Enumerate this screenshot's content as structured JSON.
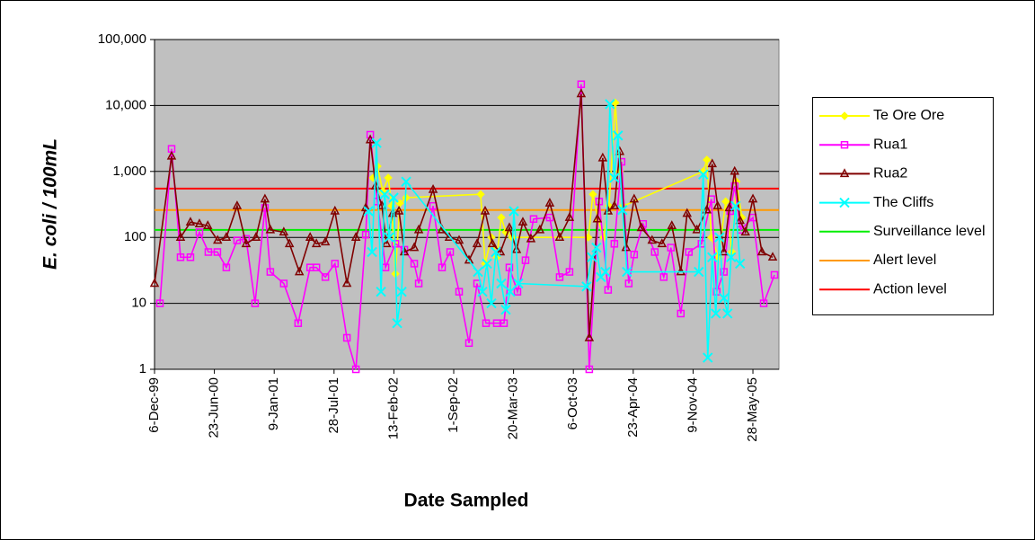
{
  "chart_data": {
    "type": "line",
    "xlabel": "Date Sampled",
    "ylabel": "E. coli / 100mL",
    "yscale": "log",
    "grid": true,
    "legend": "right",
    "xlim": [
      "1999-12-06",
      "2005-08-23"
    ],
    "xticks": [
      {
        "value": "1999-12-06",
        "label": "6-Dec-99"
      },
      {
        "value": "2000-06-23",
        "label": "23-Jun-00"
      },
      {
        "value": "2001-01-09",
        "label": "9-Jan-01"
      },
      {
        "value": "2001-07-28",
        "label": "28-Jul-01"
      },
      {
        "value": "2002-02-13",
        "label": "13-Feb-02"
      },
      {
        "value": "2002-09-01",
        "label": "1-Sep-02"
      },
      {
        "value": "2003-03-20",
        "label": "20-Mar-03"
      },
      {
        "value": "2003-10-06",
        "label": "6-Oct-03"
      },
      {
        "value": "2004-04-23",
        "label": "23-Apr-04"
      },
      {
        "value": "2004-11-09",
        "label": "9-Nov-04"
      },
      {
        "value": "2005-05-28",
        "label": "28-May-05"
      }
    ],
    "ylim": [
      1,
      100000
    ],
    "yticks": [
      1,
      10,
      100,
      {
        "value": 1000,
        "label": "1,000"
      },
      {
        "value": 10000,
        "label": "10,000"
      },
      {
        "value": 100000,
        "label": "100,000"
      }
    ],
    "series": [
      {
        "name": "Te Ore Ore",
        "color": "#ffff00",
        "marker": "diamond",
        "x": [
          "2001-12-05",
          "2001-12-20",
          "2002-01-07",
          "2002-01-25",
          "2002-02-06",
          "2002-02-18",
          "2002-03-05",
          "2002-03-26",
          "2002-11-30",
          "2002-12-15",
          "2003-01-05",
          "2003-01-23",
          "2003-02-07",
          "2003-02-22",
          "2003-03-15",
          "2003-11-25",
          "2003-12-10",
          "2003-12-28",
          "2004-01-15",
          "2004-02-02",
          "2004-02-23",
          "2004-03-09",
          "2004-03-21",
          "2004-12-13",
          "2004-12-25",
          "2005-01-09",
          "2005-02-02",
          "2005-02-26",
          "2005-03-19",
          "2005-04-03",
          "2005-04-21"
        ],
        "values": [
          800,
          1200,
          500,
          800,
          300,
          28,
          330,
          400,
          450,
          40,
          100,
          50,
          200,
          120,
          100,
          100,
          450,
          180,
          100,
          300,
          11000,
          1000,
          300,
          1000,
          1500,
          100,
          50,
          350,
          60,
          700,
          200
        ]
      },
      {
        "name": "Rua1",
        "color": "#ff00ff",
        "marker": "square",
        "x": [
          "1999-12-24",
          "2000-02-01",
          "2000-03-02",
          "2000-04-04",
          "2000-05-04",
          "2000-06-03",
          "2000-07-03",
          "2000-08-02",
          "2000-09-07",
          "2000-10-07",
          "2000-11-06",
          "2000-12-09",
          "2000-12-27",
          "2001-02-10",
          "2001-03-30",
          "2001-05-09",
          "2001-05-30",
          "2001-06-29",
          "2001-07-31",
          "2001-09-09",
          "2001-10-09",
          "2001-11-11",
          "2001-11-26",
          "2001-12-20",
          "2002-01-16",
          "2002-02-18",
          "2002-03-20",
          "2002-04-22",
          "2002-05-07",
          "2002-06-24",
          "2002-07-24",
          "2002-08-20",
          "2002-09-19",
          "2002-10-22",
          "2002-11-18",
          "2002-12-18",
          "2003-01-23",
          "2003-02-16",
          "2003-03-06",
          "2003-04-02",
          "2003-04-29",
          "2003-05-26",
          "2003-07-19",
          "2003-08-21",
          "2003-09-23",
          "2003-11-01",
          "2003-11-28",
          "2003-12-31",
          "2004-01-30",
          "2004-02-20",
          "2004-03-15",
          "2004-04-08",
          "2004-04-26",
          "2004-05-26",
          "2004-07-04",
          "2004-08-03",
          "2004-08-27",
          "2004-09-29",
          "2004-10-26",
          "2004-12-07",
          "2005-01-09",
          "2005-01-27",
          "2005-02-20",
          "2005-03-13",
          "2005-03-28",
          "2005-04-17",
          "2005-05-28",
          "2005-07-03",
          "2005-08-08"
        ],
        "values": [
          10,
          2200,
          50,
          50,
          120,
          60,
          60,
          35,
          90,
          95,
          10,
          280,
          30,
          20,
          5,
          35,
          35,
          25,
          40,
          3,
          1,
          110,
          3600,
          350,
          35,
          80,
          65,
          40,
          20,
          300,
          35,
          60,
          15,
          2.5,
          20,
          5,
          5,
          5,
          35,
          15,
          45,
          190,
          200,
          25,
          30,
          21000,
          1,
          350,
          16,
          80,
          1400,
          20,
          55,
          160,
          60,
          25,
          70,
          7,
          60,
          80,
          380,
          15,
          30,
          250,
          600,
          130,
          200,
          10,
          27
        ]
      },
      {
        "name": "Rua2",
        "color": "#800000",
        "marker": "triangle",
        "x": [
          "1999-12-06",
          "2000-02-01",
          "2000-03-02",
          "2000-04-04",
          "2000-05-04",
          "2000-06-01",
          "2000-07-04",
          "2000-08-02",
          "2000-09-07",
          "2000-10-07",
          "2000-11-09",
          "2000-12-09",
          "2000-12-27",
          "2001-02-10",
          "2001-03-01",
          "2001-04-03",
          "2001-05-09",
          "2001-05-30",
          "2001-06-29",
          "2001-07-31",
          "2001-09-09",
          "2001-10-09",
          "2001-11-11",
          "2001-11-26",
          "2001-12-14",
          "2002-01-04",
          "2002-01-19",
          "2002-02-09",
          "2002-03-02",
          "2002-03-20",
          "2002-04-22",
          "2002-05-07",
          "2002-06-24",
          "2002-07-24",
          "2002-08-17",
          "2002-09-19",
          "2002-10-22",
          "2002-11-18",
          "2002-12-15",
          "2003-01-08",
          "2003-02-04",
          "2003-03-06",
          "2003-03-30",
          "2003-04-20",
          "2003-05-17",
          "2003-06-16",
          "2003-07-19",
          "2003-08-21",
          "2003-09-23",
          "2003-11-01",
          "2003-11-28",
          "2003-12-25",
          "2004-01-12",
          "2004-01-30",
          "2004-02-20",
          "2004-03-09",
          "2004-03-30",
          "2004-04-26",
          "2004-05-20",
          "2004-06-25",
          "2004-07-28",
          "2004-08-30",
          "2004-09-29",
          "2004-10-20",
          "2004-11-22",
          "2004-12-25",
          "2005-01-12",
          "2005-01-30",
          "2005-02-20",
          "2005-03-10",
          "2005-03-28",
          "2005-04-15",
          "2005-05-03",
          "2005-05-28",
          "2005-06-27",
          "2005-08-02"
        ],
        "values": [
          20,
          1700,
          100,
          170,
          160,
          150,
          90,
          100,
          300,
          80,
          100,
          380,
          130,
          120,
          80,
          30,
          100,
          80,
          85,
          250,
          20,
          100,
          280,
          3000,
          600,
          300,
          80,
          230,
          250,
          60,
          70,
          130,
          530,
          130,
          100,
          90,
          45,
          80,
          250,
          80,
          60,
          140,
          65,
          170,
          95,
          130,
          330,
          100,
          200,
          15000,
          3,
          190,
          1600,
          250,
          300,
          2000,
          70,
          380,
          140,
          90,
          80,
          150,
          30,
          230,
          130,
          260,
          1300,
          300,
          60,
          280,
          1000,
          180,
          120,
          380,
          60,
          50
        ]
      },
      {
        "name": "The Cliffs",
        "color": "#00ffff",
        "marker": "x",
        "x": [
          "2001-11-20",
          "2001-12-02",
          "2001-12-17",
          "2002-01-01",
          "2002-01-13",
          "2002-01-28",
          "2002-02-12",
          "2002-02-24",
          "2002-03-11",
          "2002-03-26",
          "2002-11-21",
          "2002-12-06",
          "2002-12-21",
          "2003-01-05",
          "2003-01-20",
          "2003-02-07",
          "2003-02-22",
          "2003-03-09",
          "2003-03-21",
          "2003-04-05",
          "2003-11-19",
          "2003-12-07",
          "2003-12-22",
          "2004-01-06",
          "2004-01-21",
          "2004-02-05",
          "2004-02-20",
          "2004-03-03",
          "2004-03-18",
          "2004-04-02",
          "2004-11-28",
          "2004-12-13",
          "2004-12-28",
          "2005-01-12",
          "2005-01-24",
          "2005-02-05",
          "2005-02-20",
          "2005-03-04",
          "2005-03-16",
          "2005-03-31",
          "2005-04-15"
        ],
        "values": [
          250,
          60,
          2700,
          15,
          450,
          100,
          400,
          5,
          15,
          700,
          30,
          15,
          40,
          10,
          60,
          20,
          8,
          15,
          250,
          20,
          18,
          50,
          70,
          25,
          30,
          10500,
          800,
          3500,
          260,
          30,
          30,
          900,
          1.5,
          50,
          7,
          100,
          12,
          7,
          50,
          300,
          40
        ]
      },
      {
        "name": "Surveillance level",
        "color": "#00ee00",
        "value": 130
      },
      {
        "name": "Alert level",
        "color": "#ff9900",
        "value": 260
      },
      {
        "name": "Action level",
        "color": "#ff0000",
        "value": 550
      }
    ]
  }
}
